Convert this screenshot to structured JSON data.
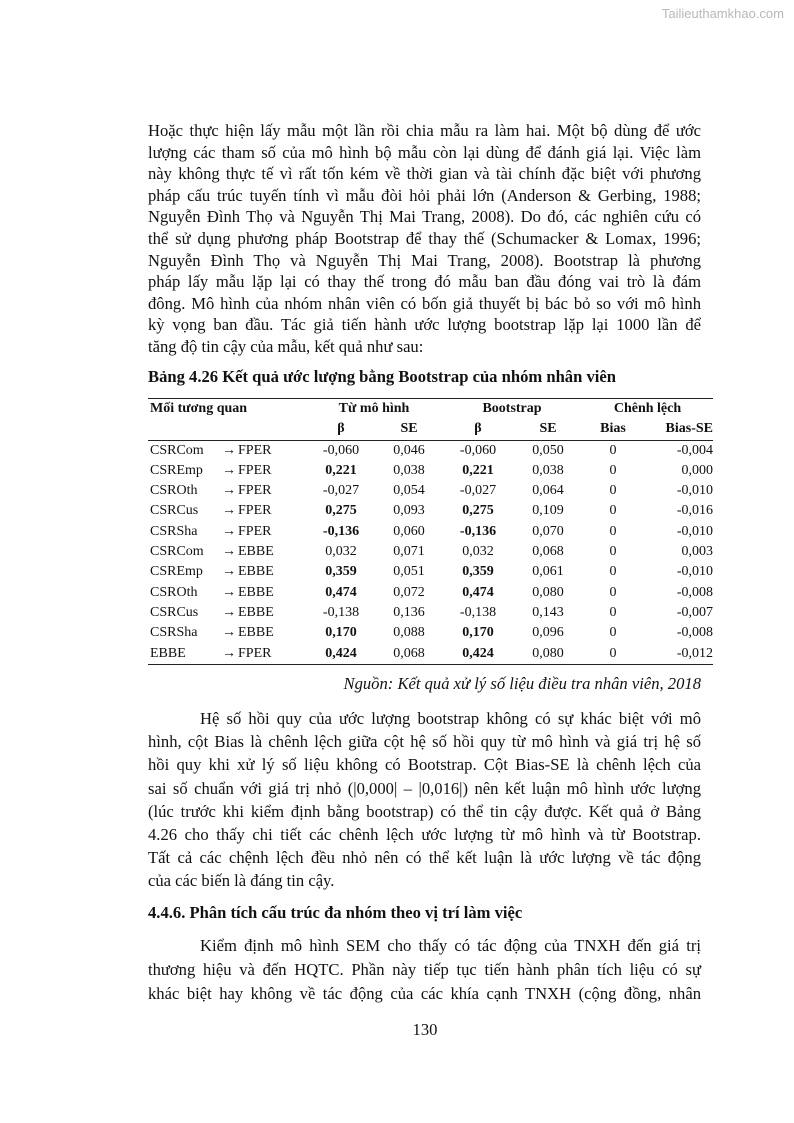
{
  "watermark": "Tailieuthamkhao.com",
  "paragraph1": [
    "Hoặc thực hiện lấy mẫu một lần rồi chia mẫu ra làm hai. Một bộ dùng để ước",
    "lượng các tham số của mô hình bộ mẫu còn lại dùng để đánh giá lại. Việc làm",
    "này không thực tế vì rất tốn kém về thời gian và tài chính đặc biệt với phương",
    "pháp cấu trúc tuyến tính vì mẫu đòi hỏi phải lớn (Anderson & Gerbing, 1988;",
    "Nguyễn Đình Thọ và Nguyễn Thị Mai Trang, 2008). Do đó, các nghiên cứu có",
    "thể sử dụng phương pháp Bootstrap để thay thế (Schumacker & Lomax, 1996;",
    "Nguyễn Đình Thọ và Nguyễn Thị Mai Trang, 2008). Bootstrap là phương",
    "pháp lấy mẫu lặp lại có thay thế trong đó mẫu ban đầu đóng vai trò là đám",
    "đông. Mô hình của nhóm nhân viên có bốn giả thuyết bị bác bỏ so với mô hình",
    "kỳ vọng ban đầu. Tác giả tiến hành ước lượng bootstrap lặp lại 1000 lần để",
    "tăng độ tin cậy của mẫu, kết quả như sau:"
  ],
  "table": {
    "title": "Bảng 4.26 Kết quả ước lượng bằng Bootstrap của nhóm nhân viên",
    "header_groups": [
      "Mối tương quan",
      "Từ mô hình",
      "Bootstrap",
      "Chênh lệch"
    ],
    "subheaders": [
      "β",
      "SE",
      "β",
      "SE",
      "Bias",
      "Bias-SE"
    ],
    "arrow": "→",
    "rows": [
      {
        "from": "CSRCom",
        "to": "FPER",
        "b_model": "-0,060",
        "se_model": "0,046",
        "b_boot": "-0,060",
        "se_boot": "0,050",
        "bias": "0",
        "bias_se": "-0,004",
        "bold": false
      },
      {
        "from": "CSREmp",
        "to": "FPER",
        "b_model": "0,221",
        "se_model": "0,038",
        "b_boot": "0,221",
        "se_boot": "0,038",
        "bias": "0",
        "bias_se": "0,000",
        "bold": true
      },
      {
        "from": "CSROth",
        "to": "FPER",
        "b_model": "-0,027",
        "se_model": "0,054",
        "b_boot": "-0,027",
        "se_boot": "0,064",
        "bias": "0",
        "bias_se": "-0,010",
        "bold": false
      },
      {
        "from": "CSRCus",
        "to": "FPER",
        "b_model": "0,275",
        "se_model": "0,093",
        "b_boot": "0,275",
        "se_boot": "0,109",
        "bias": "0",
        "bias_se": "-0,016",
        "bold": true
      },
      {
        "from": "CSRSha",
        "to": "FPER",
        "b_model": "-0,136",
        "se_model": "0,060",
        "b_boot": "-0,136",
        "se_boot": "0,070",
        "bias": "0",
        "bias_se": "-0,010",
        "bold": true
      },
      {
        "from": "CSRCom",
        "to": "EBBE",
        "b_model": "0,032",
        "se_model": "0,071",
        "b_boot": "0,032",
        "se_boot": "0,068",
        "bias": "0",
        "bias_se": "0,003",
        "bold": false
      },
      {
        "from": "CSREmp",
        "to": "EBBE",
        "b_model": "0,359",
        "se_model": "0,051",
        "b_boot": "0,359",
        "se_boot": "0,061",
        "bias": "0",
        "bias_se": "-0,010",
        "bold": true
      },
      {
        "from": "CSROth",
        "to": "EBBE",
        "b_model": "0,474",
        "se_model": "0,072",
        "b_boot": "0,474",
        "se_boot": "0,080",
        "bias": "0",
        "bias_se": "-0,008",
        "bold": true
      },
      {
        "from": "CSRCus",
        "to": "EBBE",
        "b_model": "-0,138",
        "se_model": "0,136",
        "b_boot": "-0,138",
        "se_boot": "0,143",
        "bias": "0",
        "bias_se": "-0,007",
        "bold": false
      },
      {
        "from": "CSRSha",
        "to": "EBBE",
        "b_model": "0,170",
        "se_model": "0,088",
        "b_boot": "0,170",
        "se_boot": "0,096",
        "bias": "0",
        "bias_se": "-0,008",
        "bold": true
      },
      {
        "from": "EBBE",
        "to": "FPER",
        "b_model": "0,424",
        "se_model": "0,068",
        "b_boot": "0,424",
        "se_boot": "0,080",
        "bias": "0",
        "bias_se": "-0,012",
        "bold": true
      }
    ],
    "source": "Nguồn: Kết quả xử lý số liệu điều tra nhân viên, 2018"
  },
  "paragraph2": [
    "Hệ số  hồi quy của ước lượng bootstrap không có sự khác biệt với mô",
    "hình, cột Bias là chênh lệch giữa cột hệ số  hồi quy từ mô hình và giá trị hệ số",
    " hồi quy khi xử lý số liệu không có Bootstrap. Cột Bias-SE là chênh lệch của",
    "sai số chuẩn với giá trị nhỏ (|0,000| – |0,016|) nên kết luận mô hình ước lượng",
    "(lúc trước khi kiểm định bằng bootstrap) có thể tin cậy được. Kết quả ở Bảng",
    "4.26 cho thấy chi tiết các chênh lệch ước lượng từ mô hình và từ Bootstrap.",
    "Tất cả các chệnh lệch đều nhỏ nên có thể kết luận là ước lượng về tác động",
    "của các biến là đáng tin cậy."
  ],
  "heading": "4.4.6. Phân tích cấu trúc đa nhóm theo vị trí làm việc",
  "paragraph3": [
    "Kiểm định mô hình SEM cho thấy có tác động của TNXH đến giá trị",
    "thương hiệu và đến HQTC. Phần này tiếp tục tiến hành phân tích liệu có sự",
    "khác biệt hay không về tác động của các khía cạnh TNXH (cộng đồng, nhân"
  ],
  "page_number": "130"
}
